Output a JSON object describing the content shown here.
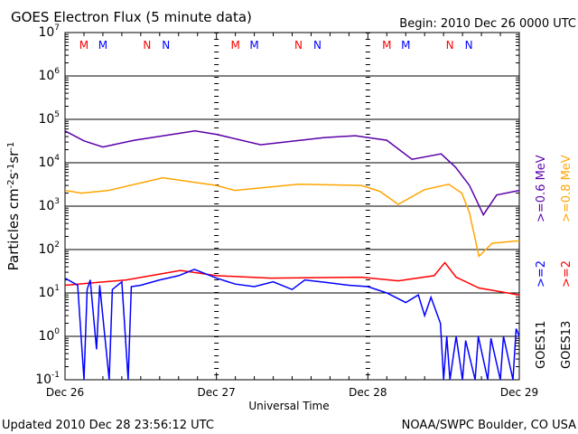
{
  "chart_data": {
    "type": "line",
    "title": "GOES Electron Flux (5 minute data)",
    "begin": "Begin: 2010 Dec 26 0000 UTC",
    "xlabel": "Universal Time",
    "ylabel": "Particles cm-2 s-1 sr-1",
    "ylabel_parts": [
      "Particles cm",
      "-2",
      "s",
      "-1",
      "sr",
      "-1"
    ],
    "xlim_hours": [
      0,
      72
    ],
    "ylim": [
      0.1,
      10000000
    ],
    "yscale": "log",
    "y_tick_exponents": [
      "7",
      "6",
      "5",
      "4",
      "3",
      "2",
      "1",
      "0",
      "-1"
    ],
    "x_ticks": [
      {
        "hours": 0,
        "label": "Dec 26"
      },
      {
        "hours": 24,
        "label": "Dec 27"
      },
      {
        "hours": 48,
        "label": "Dec 28"
      },
      {
        "hours": 72,
        "label": "Dec 29"
      }
    ],
    "threshold_line": 1000,
    "markers": [
      {
        "hours": 3,
        "label": "M",
        "color": "#ff0000"
      },
      {
        "hours": 6,
        "label": "M",
        "color": "#0000ff"
      },
      {
        "hours": 13,
        "label": "N",
        "color": "#ff0000"
      },
      {
        "hours": 16,
        "label": "N",
        "color": "#0000ff"
      },
      {
        "hours": 27,
        "label": "M",
        "color": "#ff0000"
      },
      {
        "hours": 30,
        "label": "M",
        "color": "#0000ff"
      },
      {
        "hours": 37,
        "label": "N",
        "color": "#ff0000"
      },
      {
        "hours": 40,
        "label": "N",
        "color": "#0000ff"
      },
      {
        "hours": 51,
        "label": "M",
        "color": "#ff0000"
      },
      {
        "hours": 54,
        "label": "M",
        "color": "#0000ff"
      },
      {
        "hours": 61,
        "label": "N",
        "color": "#ff0000"
      },
      {
        "hours": 64,
        "label": "N",
        "color": "#0000ff"
      }
    ],
    "legend": {
      "goes11_label": "GOES11",
      "goes13_label": "GOES13",
      "g11_low": ">=2",
      "g13_low": ">=2",
      "g11_high": ">=0.6 MeV",
      "g13_high": ">=0.8 MeV"
    },
    "series": [
      {
        "name": "GOES11 >=0.6 MeV",
        "color": "#5a00a8",
        "points": [
          [
            0,
            54000
          ],
          [
            3,
            32000
          ],
          [
            6,
            23000
          ],
          [
            11,
            33000
          ],
          [
            20.6,
            54000
          ],
          [
            24,
            45000
          ],
          [
            31,
            26000
          ],
          [
            41,
            38000
          ],
          [
            46,
            42000
          ],
          [
            51,
            33000
          ],
          [
            55,
            12000
          ],
          [
            59.6,
            16000
          ],
          [
            61.9,
            7900
          ],
          [
            64.1,
            3000
          ],
          [
            66.3,
            630
          ],
          [
            68.4,
            1800
          ],
          [
            72,
            2300
          ]
        ]
      },
      {
        "name": "GOES13 >=0.8 MeV",
        "color": "#ffa500",
        "points": [
          [
            0,
            2300
          ],
          [
            2.6,
            2000
          ],
          [
            6.9,
            2300
          ],
          [
            15.5,
            4500
          ],
          [
            24,
            3000
          ],
          [
            26.9,
            2300
          ],
          [
            37,
            3200
          ],
          [
            47,
            3000
          ],
          [
            49.9,
            2200
          ],
          [
            52.8,
            1100
          ],
          [
            57,
            2400
          ],
          [
            60.8,
            3200
          ],
          [
            62.9,
            2000
          ],
          [
            64.1,
            700
          ],
          [
            65.6,
            70
          ],
          [
            67.7,
            140
          ],
          [
            72,
            160
          ]
        ]
      },
      {
        "name": "GOES13 >=2 MeV",
        "color": "#ff0000",
        "points": [
          [
            0,
            15
          ],
          [
            9.7,
            20
          ],
          [
            18.3,
            33
          ],
          [
            24,
            25
          ],
          [
            32.6,
            22
          ],
          [
            47,
            23
          ],
          [
            52.8,
            19
          ],
          [
            58.5,
            25
          ],
          [
            60.2,
            50
          ],
          [
            62,
            23
          ],
          [
            65.6,
            13
          ],
          [
            72,
            9
          ]
        ]
      },
      {
        "name": "GOES11 >=2 MeV",
        "color": "#0000ff",
        "points": [
          [
            0,
            22
          ],
          [
            2,
            15
          ],
          [
            3,
            0.1
          ],
          [
            3.5,
            12
          ],
          [
            4,
            20
          ],
          [
            5,
            0.5
          ],
          [
            5.5,
            15
          ],
          [
            7,
            0.1
          ],
          [
            7.5,
            12
          ],
          [
            9,
            18
          ],
          [
            10,
            0.1
          ],
          [
            10.5,
            14
          ],
          [
            12,
            15
          ],
          [
            15,
            20
          ],
          [
            18,
            25
          ],
          [
            20.5,
            35
          ],
          [
            24,
            22
          ],
          [
            27,
            16
          ],
          [
            30,
            14
          ],
          [
            33,
            18
          ],
          [
            36,
            12
          ],
          [
            38,
            20
          ],
          [
            42,
            17
          ],
          [
            45,
            15
          ],
          [
            48,
            14
          ],
          [
            51,
            10
          ],
          [
            54,
            6
          ],
          [
            56,
            9
          ],
          [
            57,
            3
          ],
          [
            58,
            8
          ],
          [
            59.5,
            2
          ],
          [
            60,
            0.1
          ],
          [
            60.5,
            1
          ],
          [
            61,
            0.1
          ],
          [
            62,
            1
          ],
          [
            63,
            0.1
          ],
          [
            63.5,
            0.8
          ],
          [
            65,
            0.1
          ],
          [
            65.5,
            1
          ],
          [
            67,
            0.1
          ],
          [
            67.5,
            0.9
          ],
          [
            69,
            0.1
          ],
          [
            69.5,
            1
          ],
          [
            71,
            0.1
          ],
          [
            71.5,
            1.5
          ],
          [
            72,
            1
          ]
        ]
      }
    ]
  },
  "footer": {
    "updated": "Updated 2010 Dec 28 23:56:12 UTC",
    "source": "NOAA/SWPC Boulder, CO USA"
  }
}
